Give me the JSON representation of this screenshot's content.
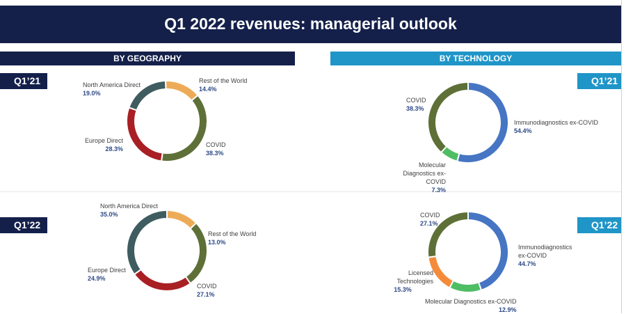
{
  "header": {
    "title": "Q1 2022 revenues: managerial outlook"
  },
  "sections": {
    "geography": "BY GEOGRAPHY",
    "technology": "BY TECHNOLOGY"
  },
  "periods": {
    "q121": "Q1’21",
    "q122": "Q1’22"
  },
  "colors": {
    "header_bg": "#14204a",
    "geography_bar": "#14204a",
    "technology_bar": "#1f95c8"
  },
  "chart_data": [
    {
      "type": "pie",
      "title": "By Geography Q1’21",
      "slices": [
        {
          "name": "COVID",
          "value": 38.3,
          "display": "38.3%",
          "color": "#5e7037"
        },
        {
          "name": "Europe Direct",
          "value": 28.3,
          "display": "28.3%",
          "color": "#a81f24"
        },
        {
          "name": "North America Direct",
          "value": 19.0,
          "display": "19.0%",
          "color": "#3f5c60"
        },
        {
          "name": "Rest of the World",
          "value": 14.4,
          "display": "14.4%",
          "color": "#eeab57"
        }
      ]
    },
    {
      "type": "pie",
      "title": "By Technology Q1’21",
      "slices": [
        {
          "name": "Immunodiagnostics ex-COVID",
          "value": 54.4,
          "display": "54.4%",
          "color": "#4675c4"
        },
        {
          "name": "Molecular Diagnostics ex-COVID",
          "value": 7.3,
          "display": "7.3%",
          "color": "#4fbd64"
        },
        {
          "name": "COVID",
          "value": 38.3,
          "display": "38.3%",
          "color": "#5e7037"
        }
      ]
    },
    {
      "type": "pie",
      "title": "By Geography Q1’22",
      "slices": [
        {
          "name": "Rest of the World",
          "value": 13.0,
          "display": "13.0%",
          "color": "#eeab57"
        },
        {
          "name": "COVID",
          "value": 27.1,
          "display": "27.1%",
          "color": "#5e7037"
        },
        {
          "name": "Europe Direct",
          "value": 24.9,
          "display": "24.9%",
          "color": "#a81f24"
        },
        {
          "name": "North America Direct",
          "value": 35.0,
          "display": "35.0%",
          "color": "#3f5c60"
        }
      ]
    },
    {
      "type": "pie",
      "title": "By Technology Q1’22",
      "slices": [
        {
          "name": "Immunodiagnostics ex-COVID",
          "value": 44.7,
          "display": "44.7%",
          "color": "#4675c4"
        },
        {
          "name": "Molecular Diagnostics ex-COVID",
          "value": 12.9,
          "display": "12.9%",
          "color": "#4fbd64"
        },
        {
          "name": "Licensed Technologies",
          "value": 15.3,
          "display": "15.3%",
          "color": "#f58b3a"
        },
        {
          "name": "COVID",
          "value": 27.1,
          "display": "27.1%",
          "color": "#5e7037"
        }
      ]
    }
  ]
}
